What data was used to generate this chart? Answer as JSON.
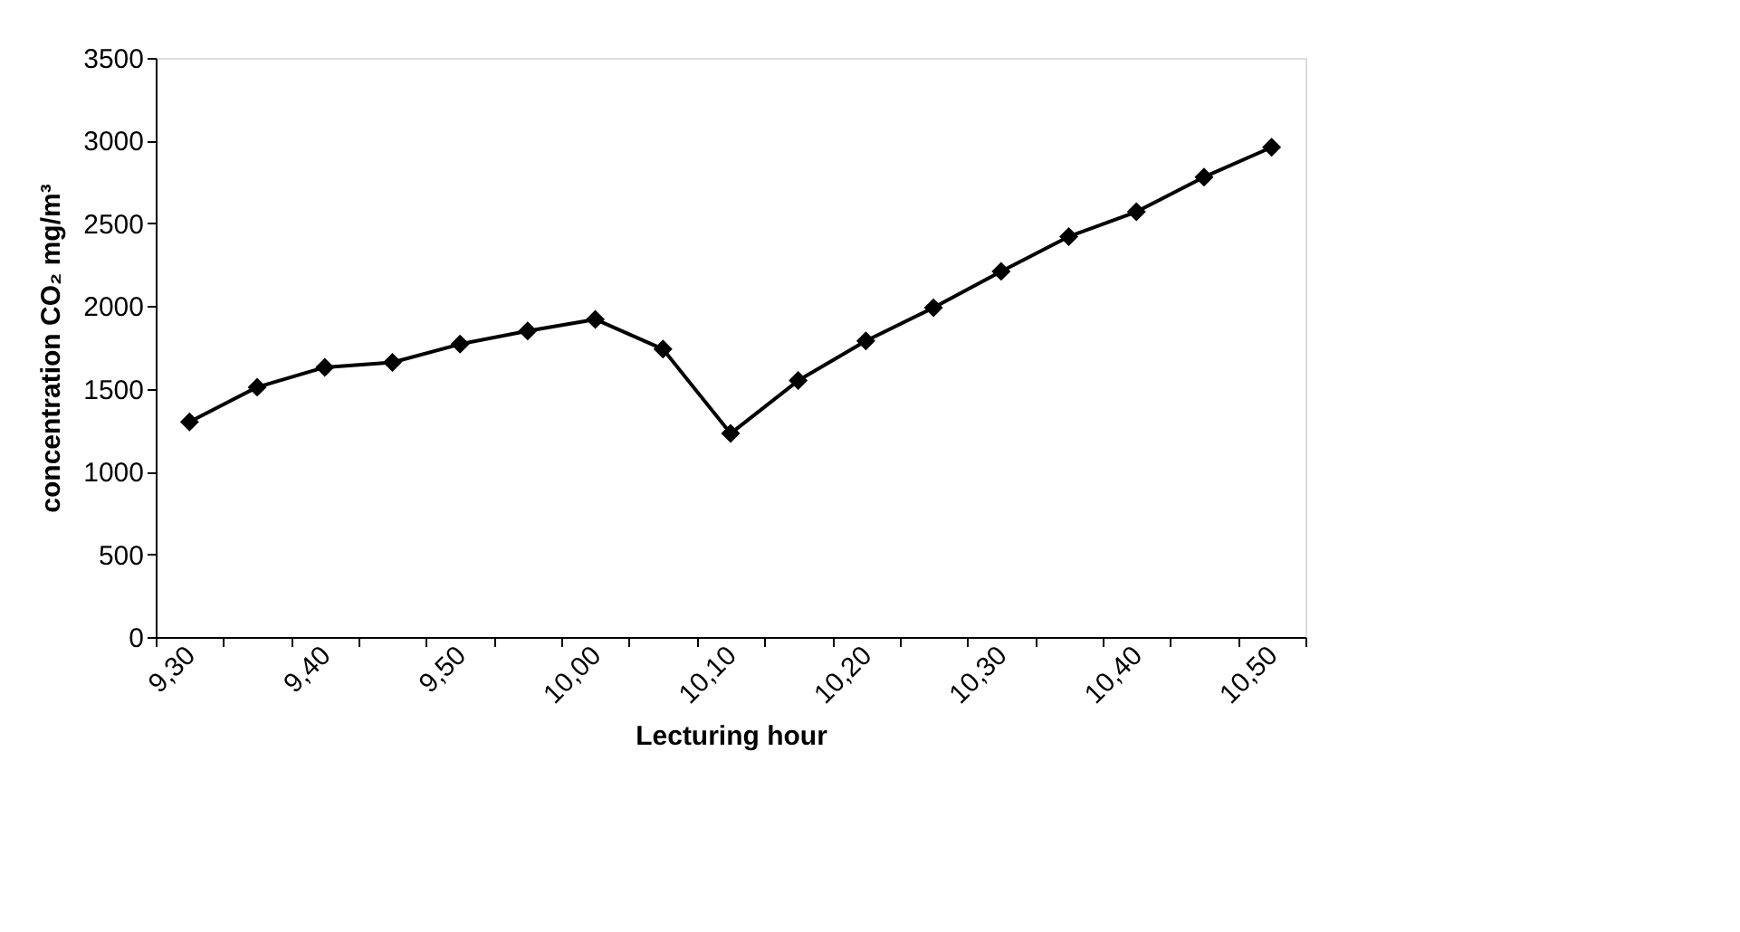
{
  "chart_data": {
    "type": "line",
    "xlabel": "Lecturing hour",
    "ylabel": "concentration CO₂ mg/m³",
    "categories": [
      "9,30",
      null,
      "9,40",
      null,
      "9,50",
      null,
      "10,00",
      null,
      "10,10",
      null,
      "10,20",
      null,
      "10,30",
      null,
      "10,40",
      null,
      "10,50"
    ],
    "series": [
      {
        "color": "#000000",
        "values": [
          1300,
          1510,
          1630,
          1660,
          1770,
          1850,
          1920,
          1740,
          1230,
          1550,
          1790,
          1990,
          2210,
          2420,
          2570,
          2780,
          2960
        ]
      }
    ],
    "ylim": [
      0,
      3500
    ],
    "yticks": [
      0,
      500,
      1000,
      1500,
      2000,
      2500,
      3000,
      3500
    ],
    "marker": "diamond",
    "line_style": "solid",
    "grid": false
  }
}
